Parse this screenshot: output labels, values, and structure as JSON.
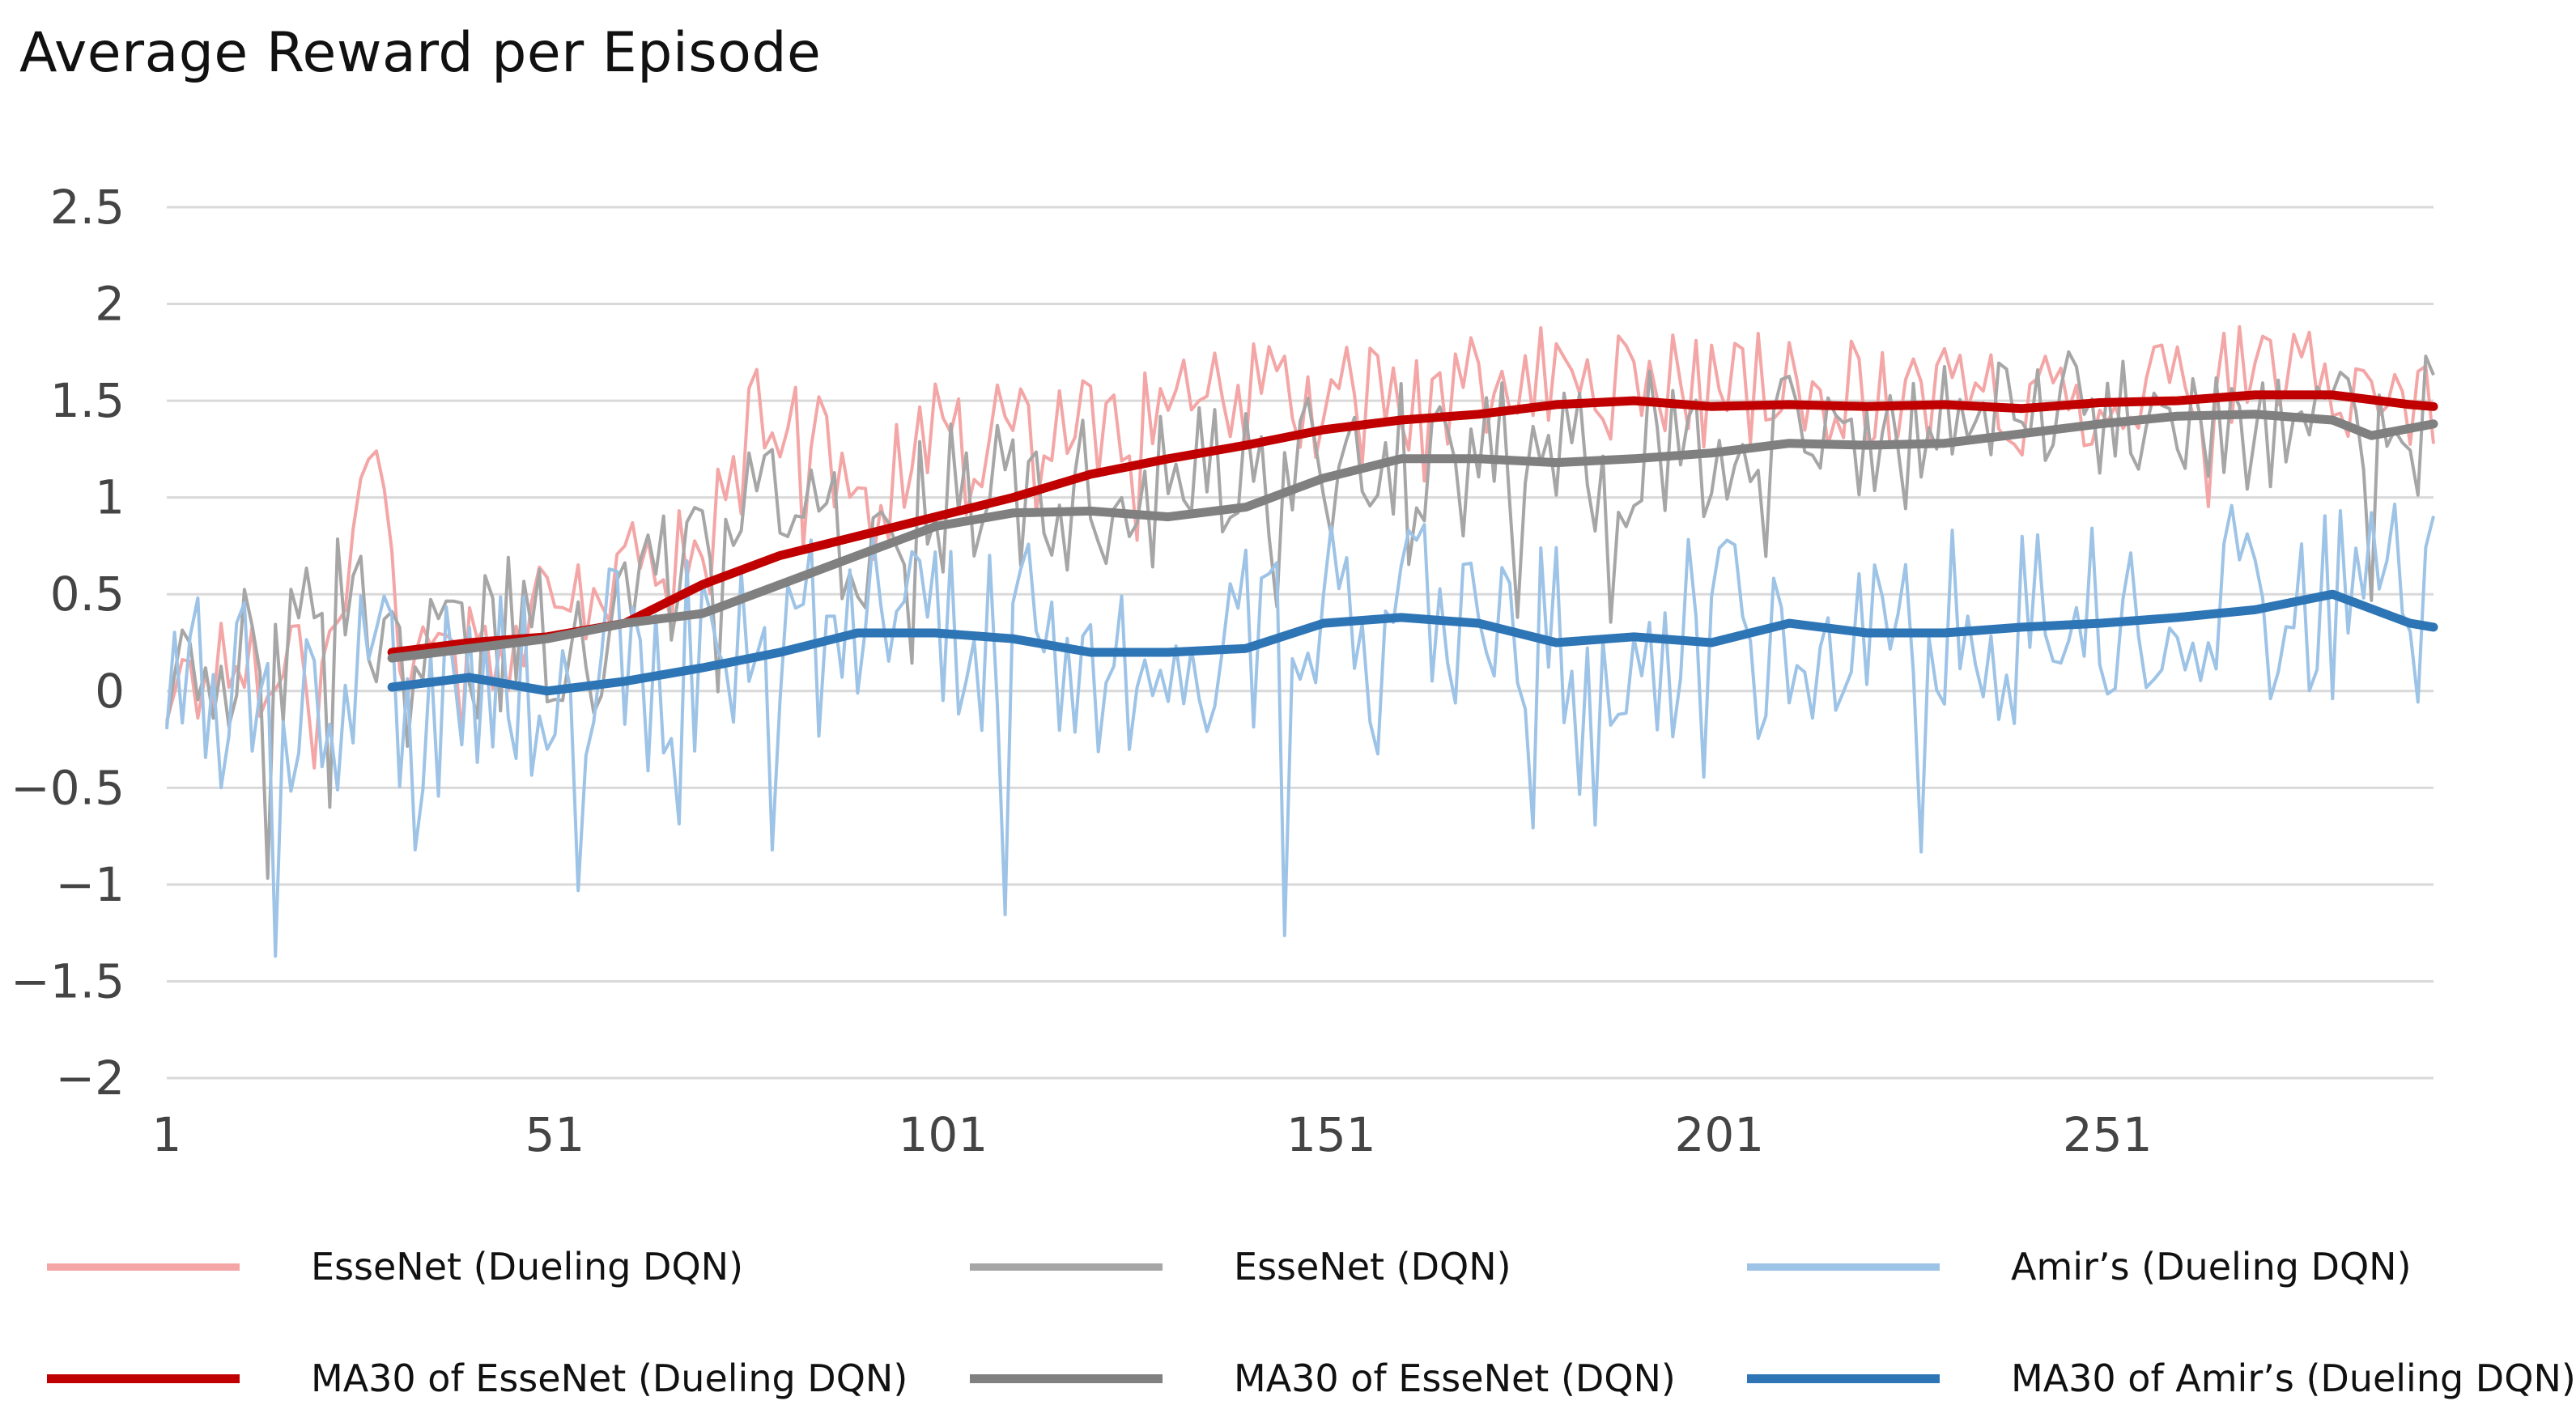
{
  "chart_data": {
    "type": "line",
    "title": "Average Reward per Episode",
    "xlabel": "",
    "ylabel": "",
    "xlim": [
      1,
      293
    ],
    "ylim": [
      -2,
      2.5
    ],
    "grid": true,
    "legend_position": "bottom",
    "y_ticks": [
      "2.5",
      "2",
      "1.5",
      "1",
      "0.5",
      "0",
      "−0.5",
      "−1",
      "−1.5",
      "−2"
    ],
    "y_tick_values": [
      2.5,
      2,
      1.5,
      1,
      0.5,
      0,
      -0.5,
      -1,
      -1.5,
      -2
    ],
    "x_ticks": [
      "1",
      "51",
      "101",
      "151",
      "201",
      "251"
    ],
    "x_tick_values": [
      1,
      51,
      101,
      151,
      201,
      251
    ],
    "series": [
      {
        "name": "EsseNet (Dueling DQN)",
        "color": "#f4a6a6",
        "style": "raw",
        "anchors": [
          [
            1,
            0.0
          ],
          [
            10,
            0.15
          ],
          [
            20,
            0.2
          ],
          [
            29,
            1.3
          ],
          [
            31,
            0.2
          ],
          [
            45,
            0.25
          ],
          [
            60,
            0.6
          ],
          [
            70,
            0.7
          ],
          [
            80,
            1.7
          ],
          [
            90,
            0.9
          ],
          [
            100,
            1.3
          ],
          [
            120,
            1.4
          ],
          [
            140,
            1.5
          ],
          [
            160,
            1.5
          ],
          [
            180,
            1.6
          ],
          [
            200,
            1.55
          ],
          [
            220,
            1.55
          ],
          [
            240,
            1.5
          ],
          [
            260,
            1.6
          ],
          [
            280,
            1.6
          ],
          [
            293,
            1.45
          ]
        ],
        "noise": 0.3
      },
      {
        "name": "EsseNet (DQN)",
        "color": "#a6a6a6",
        "style": "raw",
        "anchors": [
          [
            1,
            0.0
          ],
          [
            10,
            0.15
          ],
          [
            20,
            0.25
          ],
          [
            26,
            0.55
          ],
          [
            31,
            0.1
          ],
          [
            45,
            0.3
          ],
          [
            60,
            0.3
          ],
          [
            70,
            0.9
          ],
          [
            80,
            1.0
          ],
          [
            90,
            0.8
          ],
          [
            100,
            1.0
          ],
          [
            120,
            1.0
          ],
          [
            140,
            1.1
          ],
          [
            160,
            1.2
          ],
          [
            180,
            1.2
          ],
          [
            200,
            1.3
          ],
          [
            220,
            1.3
          ],
          [
            240,
            1.4
          ],
          [
            260,
            1.45
          ],
          [
            280,
            1.4
          ],
          [
            293,
            1.4
          ]
        ],
        "noise": 0.4
      },
      {
        "name": "Amir’s (Dueling DQN)",
        "color": "#9dc3e6",
        "style": "raw",
        "anchors": [
          [
            1,
            0.0
          ],
          [
            10,
            0.05
          ],
          [
            20,
            0.0
          ],
          [
            31,
            0.0
          ],
          [
            45,
            0.0
          ],
          [
            60,
            0.1
          ],
          [
            70,
            0.2
          ],
          [
            80,
            0.3
          ],
          [
            90,
            0.3
          ],
          [
            100,
            0.3
          ],
          [
            120,
            0.2
          ],
          [
            140,
            0.3
          ],
          [
            160,
            0.4
          ],
          [
            180,
            0.3
          ],
          [
            200,
            0.3
          ],
          [
            220,
            0.35
          ],
          [
            240,
            0.35
          ],
          [
            260,
            0.4
          ],
          [
            280,
            0.5
          ],
          [
            293,
            0.4
          ]
        ],
        "noise": 0.55
      },
      {
        "name": "MA30 of EsseNet (Dueling DQN)",
        "color": "#c00000",
        "style": "ma",
        "points": [
          [
            30,
            0.2
          ],
          [
            40,
            0.25
          ],
          [
            50,
            0.28
          ],
          [
            60,
            0.35
          ],
          [
            70,
            0.55
          ],
          [
            80,
            0.7
          ],
          [
            90,
            0.8
          ],
          [
            100,
            0.9
          ],
          [
            110,
            1.0
          ],
          [
            120,
            1.12
          ],
          [
            130,
            1.2
          ],
          [
            140,
            1.27
          ],
          [
            150,
            1.35
          ],
          [
            160,
            1.4
          ],
          [
            170,
            1.43
          ],
          [
            180,
            1.48
          ],
          [
            190,
            1.5
          ],
          [
            200,
            1.47
          ],
          [
            210,
            1.48
          ],
          [
            220,
            1.47
          ],
          [
            230,
            1.48
          ],
          [
            240,
            1.46
          ],
          [
            250,
            1.49
          ],
          [
            260,
            1.5
          ],
          [
            270,
            1.53
          ],
          [
            280,
            1.53
          ],
          [
            290,
            1.48
          ],
          [
            293,
            1.47
          ]
        ]
      },
      {
        "name": "MA30 of EsseNet (DQN)",
        "color": "#808080",
        "style": "ma",
        "points": [
          [
            30,
            0.17
          ],
          [
            40,
            0.22
          ],
          [
            50,
            0.27
          ],
          [
            60,
            0.35
          ],
          [
            70,
            0.4
          ],
          [
            80,
            0.55
          ],
          [
            90,
            0.7
          ],
          [
            100,
            0.85
          ],
          [
            110,
            0.92
          ],
          [
            120,
            0.93
          ],
          [
            130,
            0.9
          ],
          [
            140,
            0.95
          ],
          [
            150,
            1.1
          ],
          [
            160,
            1.2
          ],
          [
            170,
            1.2
          ],
          [
            180,
            1.18
          ],
          [
            190,
            1.2
          ],
          [
            200,
            1.23
          ],
          [
            210,
            1.28
          ],
          [
            220,
            1.27
          ],
          [
            230,
            1.28
          ],
          [
            240,
            1.33
          ],
          [
            250,
            1.38
          ],
          [
            260,
            1.42
          ],
          [
            270,
            1.43
          ],
          [
            280,
            1.4
          ],
          [
            285,
            1.32
          ],
          [
            293,
            1.38
          ]
        ]
      },
      {
        "name": "MA30 of Amir’s (Dueling DQN)",
        "color": "#2e75b6",
        "style": "ma",
        "points": [
          [
            30,
            0.02
          ],
          [
            40,
            0.07
          ],
          [
            50,
            0.0
          ],
          [
            60,
            0.05
          ],
          [
            70,
            0.12
          ],
          [
            80,
            0.2
          ],
          [
            90,
            0.3
          ],
          [
            100,
            0.3
          ],
          [
            110,
            0.27
          ],
          [
            120,
            0.2
          ],
          [
            130,
            0.2
          ],
          [
            140,
            0.22
          ],
          [
            150,
            0.35
          ],
          [
            160,
            0.38
          ],
          [
            170,
            0.35
          ],
          [
            180,
            0.25
          ],
          [
            190,
            0.28
          ],
          [
            200,
            0.25
          ],
          [
            210,
            0.35
          ],
          [
            220,
            0.3
          ],
          [
            230,
            0.3
          ],
          [
            240,
            0.33
          ],
          [
            250,
            0.35
          ],
          [
            260,
            0.38
          ],
          [
            270,
            0.42
          ],
          [
            280,
            0.5
          ],
          [
            290,
            0.35
          ],
          [
            293,
            0.33
          ]
        ]
      }
    ]
  },
  "legend": {
    "items": [
      {
        "label": "EsseNet (Dueling DQN)",
        "color": "#f4a6a6"
      },
      {
        "label": "EsseNet (DQN)",
        "color": "#a6a6a6"
      },
      {
        "label": "Amir’s (Dueling DQN)",
        "color": "#9dc3e6"
      },
      {
        "label": "MA30 of EsseNet (Dueling DQN)",
        "color": "#c00000"
      },
      {
        "label": "MA30 of EsseNet (DQN)",
        "color": "#808080"
      },
      {
        "label": "MA30 of Amir’s (Dueling DQN)",
        "color": "#2e75b6"
      }
    ]
  }
}
